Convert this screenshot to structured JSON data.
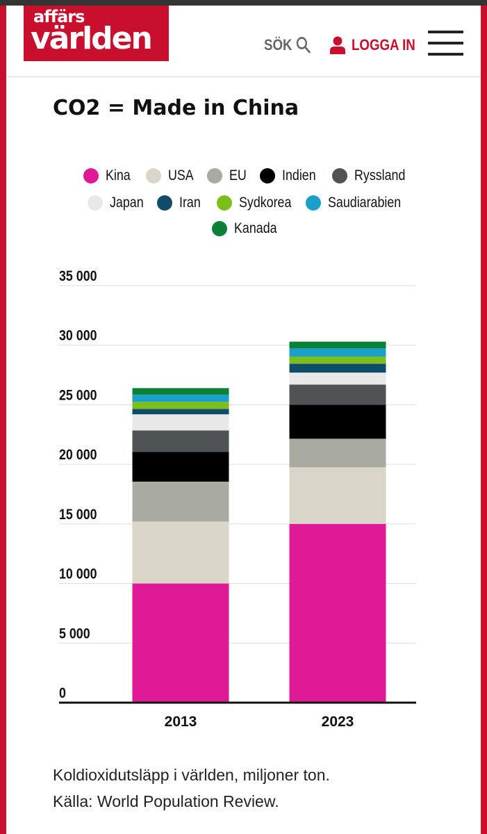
{
  "header": {
    "logo_line1": "affärs",
    "logo_line2": "världen",
    "search_label": "SÖK",
    "login_label": "LOGGA IN"
  },
  "colors": {
    "brand": "#c8102e",
    "Kina": "#e01a96",
    "USA": "#dad5c9",
    "EU": "#a9aba1",
    "Indien": "#000000",
    "Ryssland": "#505355",
    "Japan": "#e8e8e8",
    "Iran": "#0f4c69",
    "Sydkorea": "#7cbf1c",
    "Saudiarabien": "#1aa0cb",
    "Kanada": "#0a8136"
  },
  "chart_data": {
    "type": "bar",
    "stacked": true,
    "title": "CO2 = Made in China",
    "categories": [
      "2013",
      "2023"
    ],
    "series": [
      {
        "name": "Kina",
        "values": [
          10000,
          15000
        ]
      },
      {
        "name": "USA",
        "values": [
          5200,
          4750
        ]
      },
      {
        "name": "EU",
        "values": [
          3350,
          2400
        ]
      },
      {
        "name": "Indien",
        "values": [
          2500,
          2850
        ]
      },
      {
        "name": "Ryssland",
        "values": [
          1800,
          1700
        ]
      },
      {
        "name": "Japan",
        "values": [
          1350,
          1000
        ]
      },
      {
        "name": "Iran",
        "values": [
          450,
          750
        ]
      },
      {
        "name": "Sydkorea",
        "values": [
          600,
          600
        ]
      },
      {
        "name": "Saudiarabien",
        "values": [
          600,
          700
        ]
      },
      {
        "name": "Kanada",
        "values": [
          550,
          550
        ]
      }
    ],
    "yticks": [
      "0",
      "5 000",
      "10 000",
      "15 000",
      "20 000",
      "25 000",
      "30 000",
      "35 000"
    ],
    "ylim": [
      0,
      35000
    ],
    "legend": [
      "Kina",
      "USA",
      "EU",
      "Indien",
      "Ryssland",
      "Japan",
      "Iran",
      "Sydkorea",
      "Saudiarabien",
      "Kanada"
    ],
    "caption_line1": "Koldioxidutsläpp i världen, miljoner ton.",
    "caption_line2": "Källa: World Population Review."
  }
}
